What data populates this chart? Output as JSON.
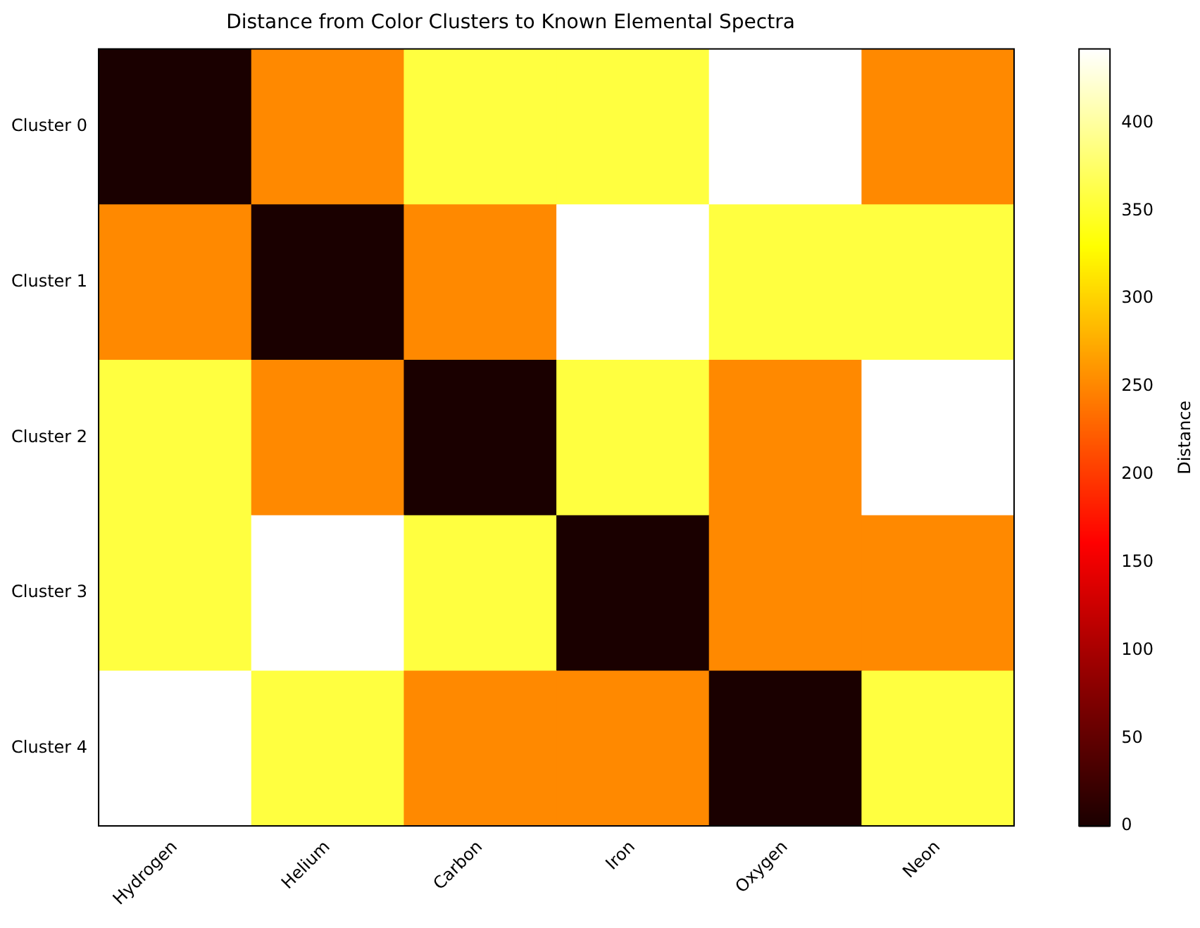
{
  "chart_data": {
    "type": "heatmap",
    "title": "Distance from Color Clusters to Known Elemental Spectra",
    "clabel": "Distance",
    "categories": [
      "Hydrogen",
      "Helium",
      "Carbon",
      "Iron",
      "Oxygen",
      "Neon"
    ],
    "y_categories": [
      "Cluster 0",
      "Cluster 1",
      "Cluster 2",
      "Cluster 3",
      "Cluster 4"
    ],
    "cells": [
      [
        0,
        252,
        358,
        358,
        442,
        252
      ],
      [
        252,
        0,
        252,
        442,
        358,
        358
      ],
      [
        358,
        252,
        0,
        358,
        252,
        442
      ],
      [
        358,
        442,
        358,
        0,
        252,
        252
      ],
      [
        442,
        358,
        252,
        252,
        0,
        358
      ]
    ],
    "clim": [
      0,
      442
    ],
    "cticks": [
      0,
      50,
      100,
      150,
      200,
      250,
      300,
      350,
      400
    ]
  }
}
